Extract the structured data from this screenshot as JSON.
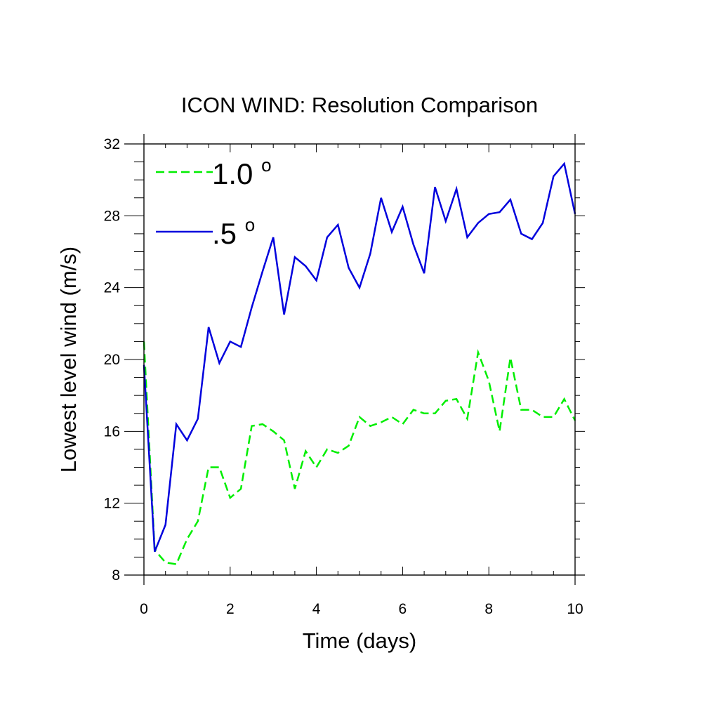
{
  "chart_data": {
    "type": "line",
    "title": "ICON WIND: Resolution Comparison",
    "xlabel": "Time (days)",
    "ylabel": "Lowest level wind (m/s)",
    "xlim": [
      0,
      10
    ],
    "ylim": [
      8,
      32
    ],
    "x_ticks": [
      "0",
      "2",
      "4",
      "6",
      "8",
      "10"
    ],
    "y_ticks": [
      "8",
      "12",
      "16",
      "20",
      "24",
      "28",
      "32"
    ],
    "grid": false,
    "legend_position": "top-left",
    "x": [
      0,
      0.25,
      0.5,
      0.75,
      1.0,
      1.25,
      1.5,
      1.75,
      2.0,
      2.25,
      2.5,
      2.75,
      3.0,
      3.25,
      3.5,
      3.75,
      4.0,
      4.25,
      4.5,
      4.75,
      5.0,
      5.25,
      5.5,
      5.75,
      6.0,
      6.25,
      6.5,
      6.75,
      7.0,
      7.25,
      7.5,
      7.75,
      8.0,
      8.25,
      8.5,
      8.75,
      9.0,
      9.25,
      9.5,
      9.75,
      10.0
    ],
    "series": [
      {
        "name": "1.0",
        "name_superscript": "o",
        "color": "#00ee00",
        "dash": "dashed",
        "values": [
          21.0,
          9.4,
          8.7,
          8.6,
          10.0,
          11.0,
          14.0,
          14.0,
          12.3,
          12.8,
          16.3,
          16.4,
          16.0,
          15.5,
          12.8,
          14.9,
          14.0,
          15.0,
          14.8,
          15.2,
          16.8,
          16.3,
          16.5,
          16.8,
          16.4,
          17.2,
          17.0,
          17.0,
          17.7,
          17.8,
          16.7,
          20.4,
          18.8,
          16.0,
          20.1,
          17.2,
          17.2,
          16.8,
          16.8,
          17.8,
          16.6
        ]
      },
      {
        "name": ".5",
        "name_superscript": "o",
        "color": "#0000dd",
        "dash": "solid",
        "values": [
          19.7,
          9.3,
          10.8,
          16.4,
          15.5,
          16.7,
          21.8,
          19.8,
          21.0,
          20.7,
          22.9,
          24.9,
          26.8,
          22.5,
          25.7,
          25.2,
          24.4,
          26.8,
          27.5,
          25.1,
          24.0,
          25.9,
          29.0,
          27.1,
          28.5,
          26.4,
          24.8,
          29.6,
          27.7,
          29.5,
          26.8,
          27.6,
          28.1,
          28.2,
          28.9,
          27.0,
          26.7,
          27.6,
          30.2,
          30.9,
          28.1
        ]
      }
    ]
  }
}
